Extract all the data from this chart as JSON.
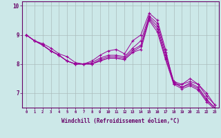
{
  "xlabel": "Windchill (Refroidissement éolien,°C)",
  "line_color": "#990099",
  "bg_color": "#cce8e8",
  "grid_color": "#aabcbc",
  "lines": [
    [
      9.0,
      8.8,
      8.7,
      8.55,
      8.35,
      8.25,
      8.05,
      8.0,
      8.1,
      8.3,
      8.45,
      8.5,
      8.35,
      8.8,
      9.0,
      9.75,
      9.5,
      8.5,
      7.3,
      7.3,
      7.5,
      7.3,
      7.0,
      6.6
    ],
    [
      9.0,
      8.8,
      8.65,
      8.45,
      8.3,
      8.1,
      8.0,
      8.0,
      8.05,
      8.2,
      8.3,
      8.3,
      8.25,
      8.55,
      8.8,
      9.65,
      9.4,
      8.4,
      7.4,
      7.3,
      7.4,
      7.3,
      6.9,
      6.6
    ],
    [
      9.0,
      8.8,
      8.65,
      8.45,
      8.3,
      8.1,
      8.0,
      8.0,
      8.0,
      8.15,
      8.25,
      8.25,
      8.2,
      8.48,
      8.65,
      9.6,
      9.3,
      8.3,
      7.4,
      7.2,
      7.35,
      7.2,
      6.8,
      6.5
    ],
    [
      9.0,
      8.8,
      8.65,
      8.45,
      8.3,
      8.1,
      8.0,
      8.0,
      8.0,
      8.1,
      8.2,
      8.2,
      8.15,
      8.42,
      8.6,
      9.55,
      9.2,
      8.2,
      7.35,
      7.2,
      7.3,
      7.15,
      6.75,
      6.5
    ],
    [
      9.0,
      8.8,
      8.65,
      8.45,
      8.3,
      8.1,
      8.0,
      8.0,
      8.0,
      8.1,
      8.2,
      8.2,
      8.15,
      8.4,
      8.5,
      9.5,
      9.1,
      8.15,
      7.3,
      7.15,
      7.25,
      7.1,
      6.7,
      6.45
    ]
  ],
  "ylim": [
    6.5,
    10.15
  ],
  "xlim": [
    -0.5,
    23.5
  ],
  "yticks": [
    7,
    8,
    9,
    10
  ],
  "xticks": [
    0,
    1,
    2,
    3,
    4,
    5,
    6,
    7,
    8,
    9,
    10,
    11,
    12,
    13,
    14,
    15,
    16,
    17,
    18,
    19,
    20,
    21,
    22,
    23
  ],
  "marker": "+"
}
